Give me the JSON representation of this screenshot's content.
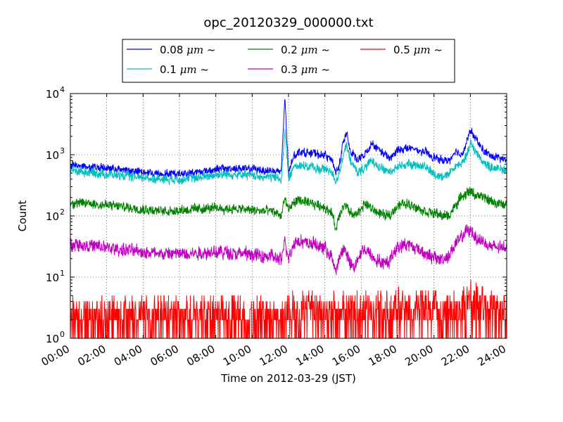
{
  "chart_data": {
    "type": "line",
    "title": "opc_20120329_000000.txt",
    "xlabel": "Time on 2012-03-29 (JST)",
    "ylabel": "Count",
    "x_unit": "hour of day (JST)",
    "xlim": [
      0,
      24
    ],
    "x_tick_labels": [
      "00:00",
      "02:00",
      "04:00",
      "06:00",
      "08:00",
      "10:00",
      "12:00",
      "14:00",
      "16:00",
      "18:00",
      "20:00",
      "22:00",
      "24:00"
    ],
    "y_scale": "log",
    "ylim": [
      1,
      10000
    ],
    "y_tick_base": "10",
    "y_tick_exponents": [
      "0",
      "1",
      "2",
      "3",
      "4"
    ],
    "grid": true,
    "legend_position": "top-center, above plot",
    "series": [
      {
        "name": "0.08 μm ~",
        "label_size": "0.08",
        "color": "#0000ff",
        "x": [
          0,
          1,
          2,
          3,
          4,
          5,
          6,
          7,
          8,
          9,
          10,
          10.5,
          11,
          11.4,
          11.6,
          11.8,
          12.0,
          12.3,
          12.7,
          13.0,
          13.3,
          13.6,
          14.0,
          14.4,
          14.6,
          14.8,
          15.0,
          15.2,
          15.4,
          15.6,
          15.8,
          16.2,
          16.6,
          17.0,
          17.3,
          17.6,
          18.0,
          18.5,
          19.0,
          19.5,
          20.0,
          20.5,
          20.8,
          21.2,
          21.5,
          21.8,
          22.0,
          22.3,
          22.7,
          23.0,
          23.5,
          24.0
        ],
        "values": [
          680,
          640,
          600,
          560,
          520,
          490,
          490,
          520,
          580,
          600,
          580,
          560,
          550,
          540,
          520,
          9000,
          500,
          1000,
          1150,
          1050,
          1100,
          1000,
          1000,
          800,
          500,
          700,
          1500,
          2500,
          1100,
          1000,
          800,
          1000,
          1500,
          1200,
          1000,
          850,
          1200,
          1300,
          1200,
          1100,
          900,
          800,
          800,
          1100,
          1000,
          1600,
          2500,
          1800,
          1200,
          1000,
          900,
          800
        ],
        "noise": 0.18
      },
      {
        "name": "0.1 μm ~",
        "label_size": "0.1",
        "color": "#00bfbf",
        "x": [
          0,
          1,
          2,
          3,
          4,
          5,
          6,
          7,
          8,
          9,
          10,
          10.5,
          11,
          11.4,
          11.6,
          11.8,
          12.0,
          12.3,
          12.7,
          13.0,
          13.3,
          13.6,
          14.0,
          14.4,
          14.6,
          14.8,
          15.0,
          15.2,
          15.4,
          15.6,
          15.8,
          16.2,
          16.6,
          17.0,
          17.3,
          17.6,
          18.0,
          18.5,
          19.0,
          19.5,
          20.0,
          20.5,
          20.8,
          21.2,
          21.5,
          21.8,
          22.0,
          22.3,
          22.7,
          23.0,
          23.5,
          24.0
        ],
        "values": [
          560,
          520,
          480,
          450,
          420,
          400,
          400,
          420,
          470,
          480,
          460,
          440,
          430,
          420,
          400,
          2500,
          400,
          650,
          700,
          620,
          640,
          580,
          580,
          520,
          370,
          520,
          900,
          1500,
          750,
          650,
          520,
          600,
          800,
          650,
          560,
          520,
          650,
          700,
          680,
          650,
          480,
          450,
          480,
          650,
          700,
          1000,
          1600,
          1100,
          750,
          650,
          600,
          560
        ],
        "noise": 0.2
      },
      {
        "name": "0.2 μm ~",
        "label_size": "0.2",
        "color": "#008000",
        "x": [
          0,
          1,
          2,
          3,
          4,
          5,
          6,
          7,
          8,
          9,
          10,
          10.5,
          11,
          11.4,
          11.6,
          11.8,
          12.0,
          12.3,
          12.7,
          13.0,
          13.3,
          13.6,
          14.0,
          14.4,
          14.6,
          14.8,
          15.0,
          15.2,
          15.4,
          15.6,
          15.8,
          16.2,
          16.6,
          17.0,
          17.3,
          17.6,
          18.0,
          18.5,
          19.0,
          19.5,
          20.0,
          20.5,
          20.8,
          21.2,
          21.5,
          21.8,
          22.0,
          22.3,
          22.7,
          23.0,
          23.5,
          24.0
        ],
        "values": [
          160,
          160,
          150,
          140,
          130,
          120,
          125,
          130,
          135,
          130,
          125,
          120,
          120,
          110,
          100,
          200,
          120,
          170,
          180,
          160,
          160,
          150,
          140,
          110,
          60,
          100,
          150,
          140,
          110,
          100,
          110,
          160,
          130,
          110,
          100,
          105,
          150,
          160,
          140,
          120,
          110,
          100,
          100,
          150,
          200,
          240,
          250,
          220,
          200,
          180,
          160,
          150
        ],
        "noise": 0.22
      },
      {
        "name": "0.3 μm ~",
        "label_size": "0.3",
        "color": "#bf00bf",
        "x": [
          0,
          1,
          2,
          3,
          4,
          5,
          6,
          7,
          8,
          9,
          10,
          10.5,
          11,
          11.4,
          11.6,
          11.8,
          12.0,
          12.3,
          12.7,
          13.0,
          13.3,
          13.6,
          14.0,
          14.4,
          14.6,
          14.8,
          15.0,
          15.2,
          15.4,
          15.6,
          15.8,
          16.2,
          16.6,
          17.0,
          17.3,
          17.6,
          18.0,
          18.5,
          19.0,
          19.5,
          20.0,
          20.5,
          20.8,
          21.2,
          21.5,
          21.8,
          22.0,
          22.3,
          22.7,
          23.0,
          23.5,
          24.0
        ],
        "values": [
          35,
          33,
          30,
          28,
          26,
          24,
          24,
          25,
          26,
          25,
          23,
          22,
          22,
          20,
          18,
          40,
          20,
          38,
          40,
          35,
          36,
          32,
          30,
          20,
          12,
          20,
          30,
          25,
          16,
          14,
          20,
          30,
          22,
          18,
          16,
          20,
          32,
          35,
          30,
          25,
          20,
          20,
          22,
          35,
          45,
          55,
          58,
          45,
          38,
          32,
          30,
          30
        ],
        "noise": 0.3
      },
      {
        "name": "0.5 μm ~",
        "label_size": "0.5",
        "color": "#ff0000",
        "x": [
          0,
          2,
          4,
          6,
          8,
          10,
          11,
          11.8,
          12.0,
          12.5,
          13,
          14,
          14.5,
          15,
          16,
          17,
          18,
          18.5,
          19,
          20,
          21,
          21.5,
          22,
          22.5,
          23,
          24
        ],
        "values": [
          2,
          2,
          2,
          2,
          2,
          2,
          2,
          2,
          2.5,
          2.5,
          2.5,
          2.5,
          2.2,
          2.5,
          2.5,
          2.5,
          2.6,
          3,
          2.6,
          2.5,
          2.6,
          3,
          3.5,
          3,
          2.8,
          2.6
        ],
        "noise": 0.4,
        "discrete_counts": true
      }
    ]
  }
}
